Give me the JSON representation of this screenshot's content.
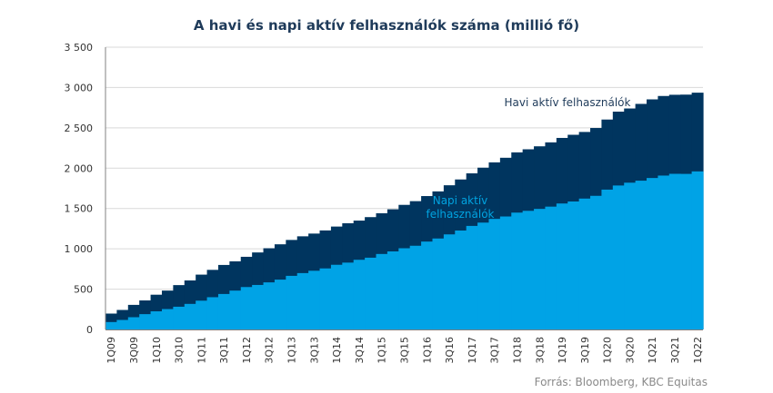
{
  "chart_data": {
    "type": "area",
    "title": "A havi és napi aktív felhasználók száma (millió fő)",
    "source": "Forrás: Bloomberg, KBC Equitas",
    "categories": [
      "1Q09",
      "2Q09",
      "3Q09",
      "4Q09",
      "1Q10",
      "2Q10",
      "3Q10",
      "4Q10",
      "1Q11",
      "2Q11",
      "3Q11",
      "4Q11",
      "1Q12",
      "2Q12",
      "3Q12",
      "4Q12",
      "1Q13",
      "2Q13",
      "3Q13",
      "4Q13",
      "1Q14",
      "2Q14",
      "3Q14",
      "4Q14",
      "1Q15",
      "2Q15",
      "3Q15",
      "4Q15",
      "1Q16",
      "2Q16",
      "3Q16",
      "4Q16",
      "1Q17",
      "2Q17",
      "3Q17",
      "4Q17",
      "1Q18",
      "2Q18",
      "3Q18",
      "4Q18",
      "1Q19",
      "2Q19",
      "3Q19",
      "4Q19",
      "1Q20",
      "2Q20",
      "3Q20",
      "4Q20",
      "1Q21",
      "2Q21",
      "3Q21",
      "4Q21",
      "1Q22"
    ],
    "x_tick_labels": [
      "1Q09",
      "3Q09",
      "1Q10",
      "3Q10",
      "1Q11",
      "3Q11",
      "1Q12",
      "3Q12",
      "1Q13",
      "3Q13",
      "1Q14",
      "3Q14",
      "1Q15",
      "3Q15",
      "1Q16",
      "3Q16",
      "1Q17",
      "3Q17",
      "1Q18",
      "3Q18",
      "1Q19",
      "3Q19",
      "1Q20",
      "3Q20",
      "1Q21",
      "3Q21",
      "1Q22"
    ],
    "series": [
      {
        "name": "Havi aktív felhasználók",
        "color": "#00355f",
        "values": [
          197,
          242,
          305,
          360,
          431,
          482,
          550,
          608,
          680,
          739,
          800,
          845,
          901,
          955,
          1007,
          1056,
          1110,
          1155,
          1189,
          1228,
          1276,
          1317,
          1350,
          1393,
          1441,
          1490,
          1545,
          1591,
          1654,
          1712,
          1788,
          1860,
          1936,
          2006,
          2072,
          2129,
          2196,
          2234,
          2271,
          2320,
          2375,
          2414,
          2449,
          2498,
          2603,
          2701,
          2740,
          2797,
          2853,
          2895,
          2910,
          2912,
          2936
        ]
      },
      {
        "name": "Napi aktív felhasználók",
        "color": "#00a3e6",
        "values": [
          92,
          118,
          152,
          190,
          225,
          253,
          282,
          317,
          357,
          400,
          440,
          482,
          526,
          552,
          584,
          618,
          665,
          699,
          728,
          757,
          802,
          829,
          864,
          890,
          936,
          968,
          1007,
          1038,
          1090,
          1128,
          1179,
          1227,
          1284,
          1325,
          1371,
          1401,
          1449,
          1471,
          1495,
          1523,
          1562,
          1587,
          1623,
          1657,
          1734,
          1785,
          1820,
          1845,
          1878,
          1908,
          1930,
          1929,
          1960
        ]
      }
    ],
    "ylim": [
      0,
      3500
    ],
    "y_ticks": [
      0,
      500,
      1000,
      1500,
      2000,
      2500,
      3000,
      3500
    ],
    "y_tick_labels": [
      "0",
      "500",
      "1 000",
      "1 500",
      "2 000",
      "2 500",
      "3 000",
      "3 500"
    ],
    "annotations": {
      "monthly": "Havi aktív felhasználók",
      "daily_line1": "Napi aktív",
      "daily_line2": "felhasználók"
    },
    "grid": true,
    "gridline_color": "#d9d9d9"
  }
}
